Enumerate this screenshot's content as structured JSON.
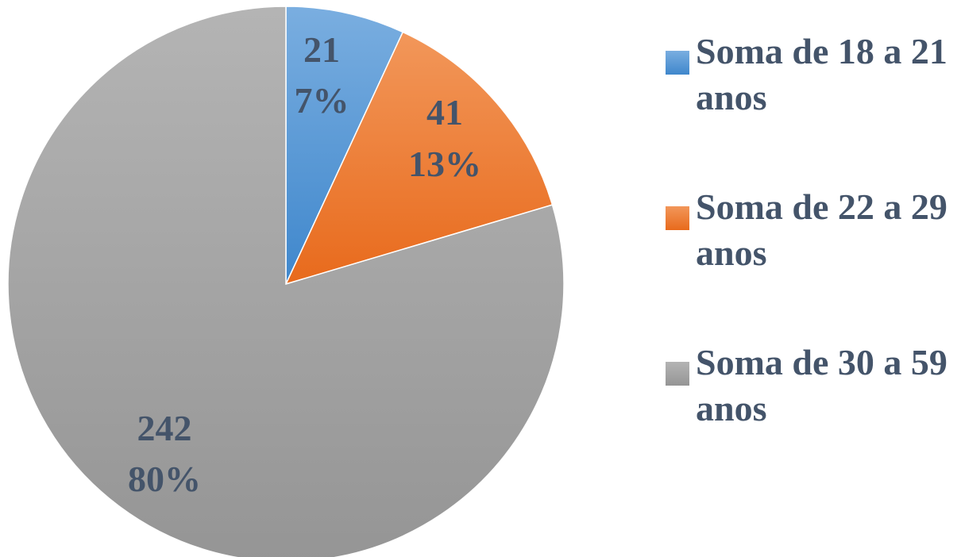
{
  "chart_data": {
    "type": "pie",
    "slices": [
      {
        "label": "Soma de 18 a 21 anos",
        "value": 21,
        "percent_label": "7%",
        "color": "#5b9bd5"
      },
      {
        "label": "Soma de 22 a 29 anos",
        "value": 41,
        "percent_label": "13%",
        "color": "#ed7d31"
      },
      {
        "label": "Soma de 30 a 59 anos",
        "value": 242,
        "percent_label": "80%",
        "color": "#a5a5a5"
      }
    ],
    "legend_position": "right",
    "label_color": "#44546a"
  }
}
